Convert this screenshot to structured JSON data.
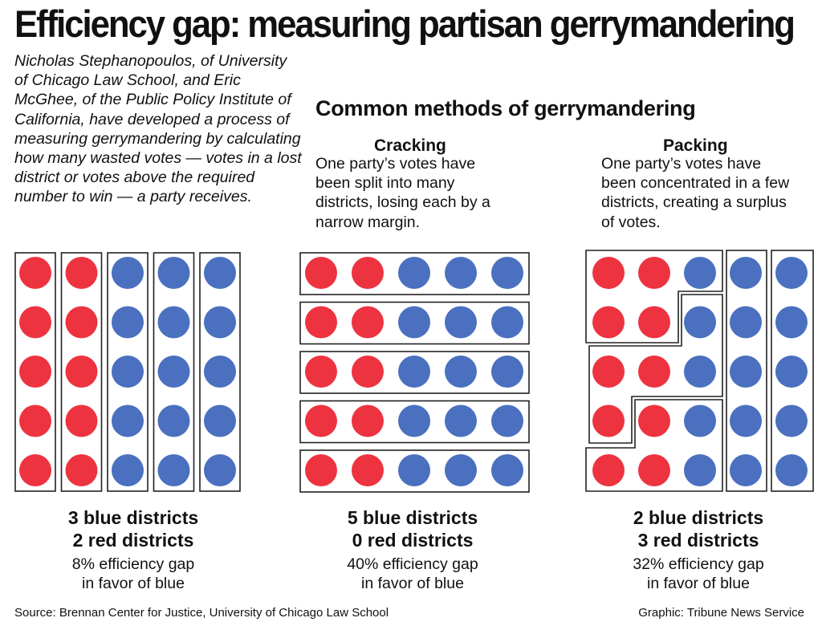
{
  "title": "Efficiency gap: measuring partisan gerrymandering",
  "intro": "Nicholas Stephanopoulos, of University of Chicago Law School, and Eric McGhee, of the Public Policy Institute of California, have developed a process of measuring gerrymandering by calculating how many wasted votes — votes in a lost district or votes above the required number to win — a party receives.",
  "subhead": "Common methods of gerrymandering",
  "colors": {
    "red": "#ee3340",
    "blue": "#4a70bf",
    "outline": "#222222"
  },
  "methods": {
    "cracking": {
      "title": "Cracking",
      "description": "One party’s votes have been split into many districts, losing each by a narrow margin."
    },
    "packing": {
      "title": "Packing",
      "description": "One party’s votes have been concentrated in a few districts, creating a surplus of votes."
    }
  },
  "grids": [
    {
      "id": "baseline",
      "rows": [
        "RRBBB",
        "RRBBB",
        "RRBBB",
        "RRBBB",
        "RRBBB"
      ],
      "districts": "five vertical columns of 5 voters each",
      "result_blue": "3 blue districts",
      "result_red": "2 red districts",
      "gap_line1": "8% efficiency gap",
      "gap_line2": "in favor of blue"
    },
    {
      "id": "cracking",
      "rows": [
        "RRBBB",
        "RRBBB",
        "RRBBB",
        "RRBBB",
        "RRBBB"
      ],
      "districts": "five horizontal rows of 5 voters each",
      "result_blue": "5 blue districts",
      "result_red": "0 red districts",
      "gap_line1": "40% efficiency gap",
      "gap_line2": "in favor of blue"
    },
    {
      "id": "packing",
      "rows": [
        "RRBBB",
        "RRBBB",
        "RRBBB",
        "RRBBB",
        "RRBBB"
      ],
      "districts": "three irregular red-majority districts on the left and two blue columns on the right",
      "result_blue": "2 blue districts",
      "result_red": "3 red districts",
      "gap_line1": "32% efficiency gap",
      "gap_line2": "in favor of blue"
    }
  ],
  "source": "Source: Brennan Center for Justice, University of Chicago Law School",
  "credit": "Graphic: Tribune News Service"
}
